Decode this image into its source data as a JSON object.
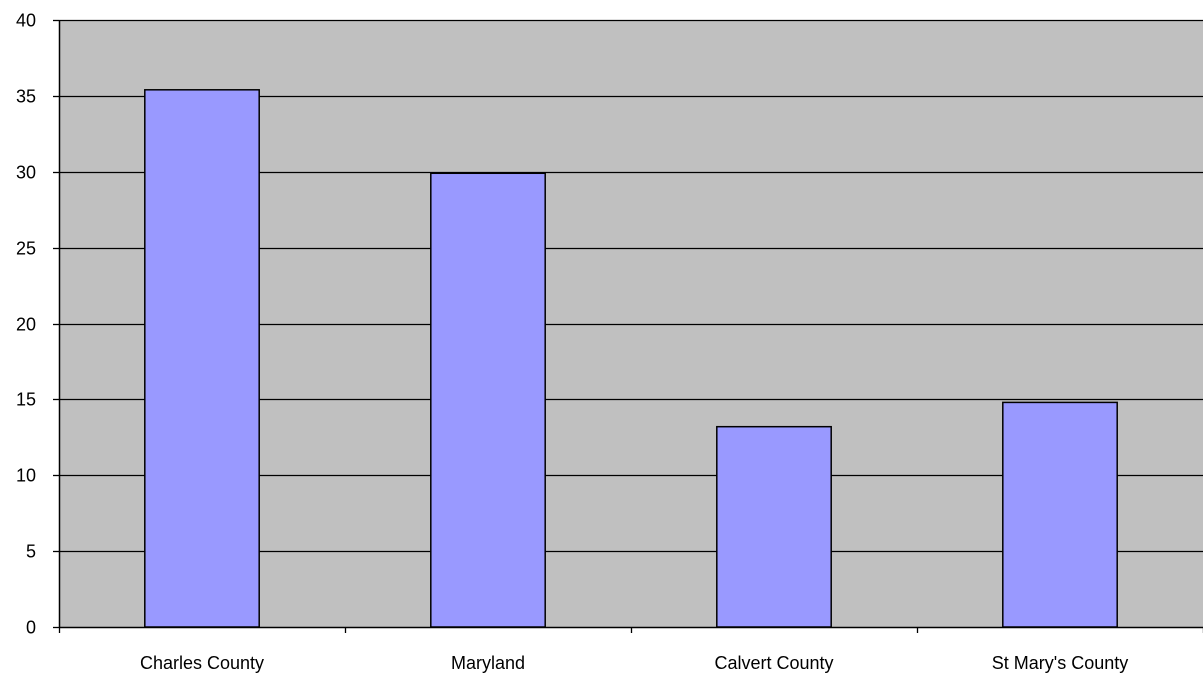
{
  "chart_data": {
    "type": "bar",
    "categories": [
      "Charles County",
      "Maryland",
      "Calvert County",
      "St Mary's County"
    ],
    "values": [
      35.4,
      29.9,
      13.2,
      14.8
    ],
    "ylim": [
      0,
      40
    ],
    "yticks": [
      0,
      5,
      10,
      15,
      20,
      25,
      30,
      35,
      40
    ],
    "title": "",
    "xlabel": "",
    "ylabel": "",
    "grid": true,
    "legend": "none",
    "colors": {
      "plot_background": "#c0c0c0",
      "bar_fill": "#9999ff",
      "bar_stroke": "#000000",
      "gridline": "#000000"
    }
  }
}
